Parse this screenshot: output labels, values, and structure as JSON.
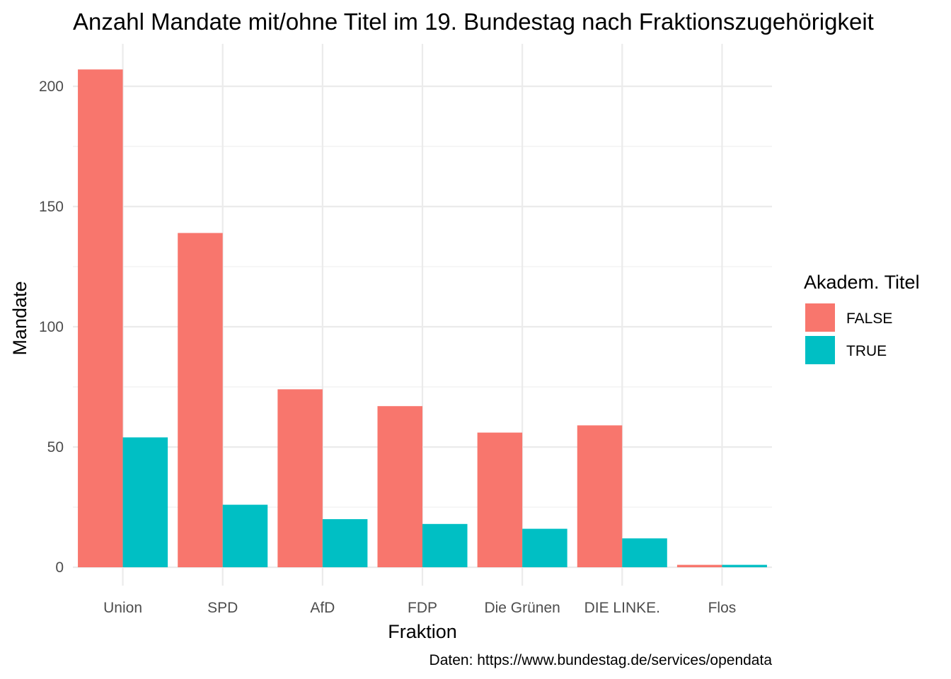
{
  "chart_data": {
    "type": "bar",
    "title": "Anzahl Mandate mit/ohne Titel im 19. Bundestag nach Fraktionszugehörigkeit",
    "xlabel": "Fraktion",
    "ylabel": "Mandate",
    "caption": "Daten: https://www.bundestag.de/services/opendata",
    "categories": [
      "Union",
      "SPD",
      "AfD",
      "FDP",
      "Die Grünen",
      "DIE LINKE.",
      "Flos"
    ],
    "series": [
      {
        "name": "FALSE",
        "color": "#F8766D",
        "values": [
          207,
          139,
          74,
          67,
          56,
          59,
          1
        ]
      },
      {
        "name": "TRUE",
        "color": "#00BFC4",
        "values": [
          54,
          26,
          20,
          18,
          16,
          12,
          1
        ]
      }
    ],
    "ylim": [
      0,
      219
    ],
    "yticks": [
      0,
      50,
      100,
      150,
      200
    ],
    "legend": {
      "title": "Akadem. Titel",
      "position": "right"
    },
    "grid": true
  }
}
